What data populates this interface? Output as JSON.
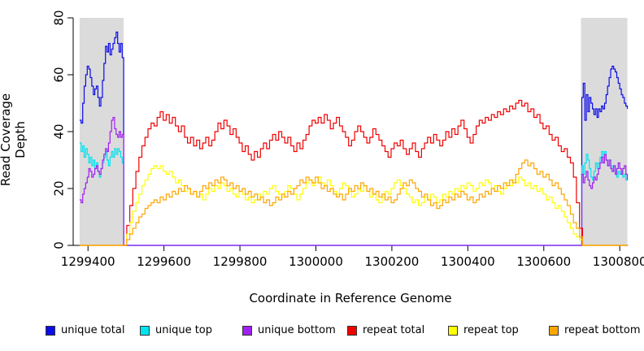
{
  "chart_data": {
    "type": "line",
    "xlabel": "Coordinate in Reference Genome",
    "ylabel": "Read Coverage Depth",
    "xlim": [
      1299361,
      1300821
    ],
    "ylim": [
      0,
      80
    ],
    "x_ticks": [
      1299400,
      1299600,
      1299800,
      1300000,
      1300200,
      1300400,
      1300600,
      1300800
    ],
    "y_ticks": [
      0,
      20,
      40,
      60,
      80
    ],
    "grid": false,
    "legend_position": "bottom",
    "shaded_region_color": "#DBDBDB",
    "shaded_regions": [
      {
        "from": 1299378,
        "to": 1299494
      },
      {
        "from": 1300698,
        "to": 1300820
      }
    ],
    "series": [
      {
        "name": "unique total",
        "color": "#0C0CE8",
        "segments": [
          {
            "x0": 1299378,
            "dx": 4,
            "y": [
              44,
              43,
              50,
              56,
              60,
              63,
              62,
              59,
              56,
              53,
              55,
              56,
              52,
              49,
              52,
              58,
              64,
              70,
              68,
              71,
              67,
              69,
              71,
              73,
              75,
              71,
              68,
              71,
              66,
              54
            ]
          },
          {
            "x0": 1299494,
            "dx": 1206,
            "y": [
              0,
              0
            ]
          },
          {
            "x0": 1300700,
            "dx": 4,
            "y": [
              52,
              57,
              44,
              53,
              47,
              52,
              50,
              48,
              46,
              48,
              45,
              48,
              47,
              49,
              48,
              50,
              53,
              56,
              59,
              62,
              63,
              62,
              61,
              59,
              57,
              55,
              53,
              52,
              50,
              49,
              48
            ]
          }
        ]
      },
      {
        "name": "unique top",
        "color": "#00E4F0",
        "segments": [
          {
            "x0": 1299378,
            "dx": 4,
            "y": [
              36,
              33,
              35,
              31,
              34,
              32,
              29,
              31,
              28,
              30,
              27,
              29,
              26,
              24,
              27,
              29,
              31,
              33,
              30,
              28,
              31,
              33,
              31,
              34,
              32,
              34,
              33,
              31,
              29,
              28
            ]
          },
          {
            "x0": 1299494,
            "dx": 1206,
            "y": [
              0,
              0
            ]
          },
          {
            "x0": 1300700,
            "dx": 4,
            "y": [
              28,
              25,
              29,
              32,
              30,
              27,
              24,
              23,
              26,
              29,
              27,
              29,
              31,
              33,
              31,
              33,
              30,
              28,
              30,
              28,
              26,
              28,
              26,
              24,
              26,
              25,
              26,
              24,
              25,
              23,
              24
            ]
          }
        ]
      },
      {
        "name": "unique bottom",
        "color": "#A020F0",
        "segments": [
          {
            "x0": 1299378,
            "dx": 4,
            "y": [
              16,
              15,
              18,
              20,
              22,
              24,
              27,
              26,
              24,
              25,
              27,
              28,
              26,
              25,
              27,
              30,
              32,
              34,
              33,
              36,
              40,
              44,
              45,
              41,
              39,
              38,
              40,
              38,
              39,
              37
            ]
          },
          {
            "x0": 1299494,
            "dx": 1206,
            "y": [
              0,
              0
            ]
          },
          {
            "x0": 1300700,
            "dx": 4,
            "y": [
              25,
              22,
              24,
              26,
              23,
              21,
              20,
              22,
              24,
              23,
              25,
              27,
              29,
              31,
              29,
              32,
              30,
              28,
              30,
              27,
              26,
              28,
              25,
              27,
              29,
              27,
              25,
              27,
              28,
              25,
              23
            ]
          }
        ]
      },
      {
        "name": "repeat total",
        "color": "#F20000",
        "segments": [
          {
            "x0": 1299378,
            "dx": 116,
            "y": [
              0,
              0
            ]
          },
          {
            "x0": 1299494,
            "dx": 8,
            "y": [
              0,
              7,
              14,
              20,
              26,
              31,
              35,
              38,
              41,
              43,
              42,
              45,
              47,
              44,
              46,
              43,
              45,
              42,
              40,
              42,
              38,
              36,
              38,
              35,
              37,
              34,
              36,
              38,
              35,
              37,
              40,
              43,
              41,
              44,
              42,
              39,
              41,
              38,
              36,
              33,
              35,
              32,
              30,
              33,
              31,
              34,
              36,
              34,
              37,
              39,
              37,
              40,
              38,
              36,
              38,
              35,
              33,
              36,
              34,
              37,
              39,
              42,
              44,
              43,
              45,
              43,
              46,
              44,
              41,
              43,
              45,
              42,
              40,
              38,
              35,
              37,
              40,
              42,
              40,
              38,
              36,
              38,
              41,
              39,
              37,
              35,
              33,
              31,
              34,
              36,
              35,
              37,
              34,
              32,
              34,
              36,
              33,
              31,
              34,
              36,
              38,
              36,
              39,
              37,
              35,
              37,
              40,
              38,
              41,
              39,
              42,
              44,
              41,
              38,
              36,
              39,
              42,
              44,
              43,
              45,
              44,
              46,
              45,
              47,
              46,
              48,
              47,
              49,
              48,
              50,
              51,
              49,
              50,
              47,
              48,
              45,
              46,
              43,
              41,
              42,
              39,
              37,
              38,
              35,
              33,
              34,
              31,
              29,
              24,
              15,
              6,
              0
            ]
          },
          {
            "x0": 1300702,
            "dx": 118,
            "y": [
              0,
              0
            ]
          }
        ]
      },
      {
        "name": "repeat top",
        "color": "#FFFF00",
        "segments": [
          {
            "x0": 1299378,
            "dx": 116,
            "y": [
              0,
              0
            ]
          },
          {
            "x0": 1299494,
            "dx": 8,
            "y": [
              0,
              4,
              8,
              12,
              15,
              18,
              21,
              23,
              25,
              27,
              28,
              27,
              28,
              26,
              25,
              26,
              24,
              22,
              23,
              21,
              19,
              20,
              18,
              19,
              17,
              18,
              16,
              18,
              20,
              19,
              21,
              20,
              22,
              21,
              19,
              20,
              18,
              17,
              19,
              18,
              16,
              17,
              15,
              16,
              18,
              17,
              19,
              18,
              20,
              21,
              19,
              18,
              17,
              19,
              21,
              20,
              18,
              16,
              18,
              20,
              22,
              23,
              21,
              22,
              24,
              22,
              21,
              23,
              21,
              19,
              18,
              20,
              22,
              21,
              19,
              17,
              18,
              20,
              19,
              21,
              19,
              17,
              18,
              16,
              15,
              17,
              19,
              18,
              20,
              22,
              23,
              21,
              20,
              18,
              17,
              15,
              16,
              14,
              15,
              17,
              16,
              18,
              17,
              15,
              16,
              18,
              17,
              19,
              18,
              20,
              19,
              21,
              20,
              22,
              21,
              19,
              20,
              22,
              21,
              23,
              22,
              20,
              21,
              19,
              18,
              20,
              22,
              21,
              23,
              22,
              24,
              23,
              21,
              22,
              20,
              21,
              19,
              20,
              18,
              16,
              17,
              15,
              13,
              14,
              12,
              10,
              8,
              6,
              4,
              3,
              2,
              0
            ]
          },
          {
            "x0": 1300702,
            "dx": 118,
            "y": [
              0,
              0
            ]
          }
        ]
      },
      {
        "name": "repeat bottom",
        "color": "#FFA500",
        "segments": [
          {
            "x0": 1299378,
            "dx": 116,
            "y": [
              0,
              0
            ]
          },
          {
            "x0": 1299494,
            "dx": 8,
            "y": [
              0,
              2,
              4,
              6,
              8,
              10,
              11,
              13,
              14,
              15,
              16,
              15,
              17,
              16,
              18,
              17,
              19,
              18,
              20,
              19,
              21,
              20,
              18,
              19,
              17,
              19,
              21,
              20,
              22,
              21,
              23,
              22,
              24,
              23,
              21,
              22,
              20,
              21,
              19,
              20,
              18,
              19,
              17,
              18,
              16,
              17,
              15,
              16,
              14,
              15,
              17,
              16,
              18,
              17,
              19,
              18,
              20,
              21,
              23,
              22,
              24,
              23,
              22,
              24,
              22,
              20,
              21,
              19,
              20,
              18,
              17,
              18,
              16,
              18,
              20,
              19,
              21,
              20,
              22,
              21,
              19,
              20,
              18,
              19,
              17,
              18,
              16,
              17,
              15,
              16,
              18,
              20,
              22,
              21,
              23,
              22,
              20,
              19,
              17,
              18,
              16,
              14,
              15,
              13,
              14,
              16,
              15,
              17,
              16,
              18,
              17,
              19,
              18,
              16,
              17,
              15,
              16,
              18,
              17,
              19,
              18,
              20,
              19,
              21,
              20,
              22,
              21,
              23,
              22,
              25,
              27,
              29,
              30,
              28,
              29,
              27,
              25,
              26,
              24,
              25,
              23,
              21,
              22,
              20,
              18,
              16,
              14,
              11,
              8,
              6,
              3,
              0
            ]
          },
          {
            "x0": 1300702,
            "dx": 118,
            "y": [
              0,
              0
            ]
          }
        ]
      }
    ]
  },
  "legend": {
    "items": [
      {
        "label": "unique total",
        "color": "#0C0CE8"
      },
      {
        "label": "unique top",
        "color": "#00E4F0"
      },
      {
        "label": "unique bottom",
        "color": "#A020F0"
      },
      {
        "label": "repeat total",
        "color": "#F20000"
      },
      {
        "label": "repeat top",
        "color": "#FFFF00"
      },
      {
        "label": "repeat bottom",
        "color": "#FFA500"
      }
    ]
  }
}
